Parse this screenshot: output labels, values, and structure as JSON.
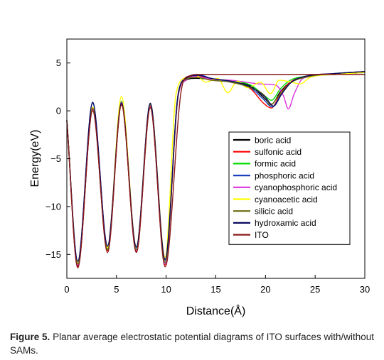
{
  "chart_data": {
    "type": "line",
    "title": "",
    "xlabel": "Distance(Å)",
    "ylabel": "Energy(eV)",
    "xlim": [
      0,
      30
    ],
    "ylim": [
      -17.5,
      7.5
    ],
    "x_ticks": [
      0,
      5,
      10,
      15,
      20,
      25,
      30
    ],
    "y_ticks": [
      -15,
      -10,
      -5,
      0,
      5
    ],
    "grid": false,
    "legend_position": "center-right",
    "minima_x": [
      1.1,
      4.1,
      7.0,
      9.9
    ],
    "maxima_x": [
      2.6,
      5.5,
      8.4
    ],
    "series": [
      {
        "name": "boric acid",
        "color": "#000000",
        "min_depth": [
          -16.2,
          -14.6,
          -14.6,
          -16.0
        ],
        "max_height": [
          0.2,
          0.8,
          0.5
        ],
        "final": 3.8,
        "tail": [
          [
            11.2,
            1.5
          ],
          [
            12.0,
            3.2
          ],
          [
            13.0,
            3.4
          ],
          [
            14.5,
            3.3
          ],
          [
            16.5,
            3.1
          ],
          [
            18.5,
            2.6
          ],
          [
            20.0,
            1.2
          ],
          [
            20.6,
            0.7
          ],
          [
            21.5,
            2.0
          ],
          [
            22.5,
            3.0
          ],
          [
            24.0,
            3.6
          ],
          [
            27.0,
            3.8
          ],
          [
            30.0,
            4.0
          ]
        ]
      },
      {
        "name": "sulfonic acid",
        "color": "#ff0000",
        "min_depth": [
          -16.3,
          -14.6,
          -14.7,
          -16.1
        ],
        "max_height": [
          0.1,
          0.7,
          0.4
        ],
        "final": 3.9,
        "tail": [
          [
            11.2,
            1.5
          ],
          [
            12.0,
            3.3
          ],
          [
            13.2,
            3.6
          ],
          [
            14.5,
            3.3
          ],
          [
            16.5,
            3.0
          ],
          [
            18.5,
            2.3
          ],
          [
            19.8,
            0.8
          ],
          [
            20.6,
            0.3
          ],
          [
            21.5,
            1.8
          ],
          [
            22.5,
            3.0
          ],
          [
            24.0,
            3.6
          ],
          [
            27.0,
            3.9
          ],
          [
            30.0,
            4.1
          ]
        ]
      },
      {
        "name": "formic acid",
        "color": "#00dd00",
        "min_depth": [
          -16.0,
          -14.4,
          -14.5,
          -15.9
        ],
        "max_height": [
          0.3,
          1.0,
          0.6
        ],
        "final": 3.8,
        "tail": [
          [
            11.2,
            1.6
          ],
          [
            12.0,
            3.3
          ],
          [
            13.0,
            3.5
          ],
          [
            14.5,
            3.3
          ],
          [
            16.5,
            3.1
          ],
          [
            18.5,
            2.7
          ],
          [
            20.0,
            1.5
          ],
          [
            20.6,
            1.1
          ],
          [
            21.5,
            2.3
          ],
          [
            22.5,
            3.2
          ],
          [
            24.0,
            3.6
          ],
          [
            27.0,
            3.8
          ],
          [
            30.0,
            4.0
          ]
        ]
      },
      {
        "name": "phosphoric acid",
        "color": "#1a3fbf",
        "min_depth": [
          -15.8,
          -14.2,
          -14.3,
          -15.6
        ],
        "max_height": [
          0.8,
          0.9,
          0.7
        ],
        "final": 3.9,
        "tail": [
          [
            11.2,
            1.7
          ],
          [
            12.0,
            3.4
          ],
          [
            13.2,
            3.8
          ],
          [
            14.5,
            3.4
          ],
          [
            16.5,
            3.0
          ],
          [
            18.5,
            2.4
          ],
          [
            19.8,
            1.2
          ],
          [
            20.7,
            0.4
          ],
          [
            21.5,
            1.6
          ],
          [
            22.5,
            2.9
          ],
          [
            24.0,
            3.5
          ],
          [
            27.0,
            3.9
          ],
          [
            30.0,
            4.1
          ]
        ]
      },
      {
        "name": "cyanophosphoric acid",
        "color": "#dd33dd",
        "min_depth": [
          -16.1,
          -14.5,
          -14.6,
          -16.0
        ],
        "max_height": [
          0.2,
          0.9,
          0.5
        ],
        "final": 3.8,
        "tail": [
          [
            11.2,
            1.5
          ],
          [
            12.0,
            3.2
          ],
          [
            13.0,
            3.6
          ],
          [
            14.5,
            3.3
          ],
          [
            16.5,
            3.2
          ],
          [
            18.0,
            3.0
          ],
          [
            19.5,
            2.8
          ],
          [
            21.0,
            2.7
          ],
          [
            21.8,
            1.6
          ],
          [
            22.3,
            0.2
          ],
          [
            22.9,
            1.8
          ],
          [
            23.8,
            3.4
          ],
          [
            27.0,
            3.8
          ],
          [
            30.0,
            4.0
          ]
        ]
      },
      {
        "name": "cyanoacetic acid",
        "color": "#ffff00",
        "min_depth": [
          -15.9,
          -14.3,
          -14.2,
          -15.3
        ],
        "max_height": [
          0.4,
          1.5,
          0.8
        ],
        "final": 3.8,
        "tail": [
          [
            11.0,
            1.8
          ],
          [
            12.0,
            3.5
          ],
          [
            13.0,
            3.7
          ],
          [
            14.0,
            3.0
          ],
          [
            15.2,
            3.4
          ],
          [
            16.2,
            1.9
          ],
          [
            17.2,
            3.1
          ],
          [
            18.2,
            2.4
          ],
          [
            19.5,
            3.0
          ],
          [
            20.5,
            1.8
          ],
          [
            21.4,
            3.2
          ],
          [
            22.6,
            3.0
          ],
          [
            23.5,
            2.8
          ],
          [
            24.5,
            3.5
          ],
          [
            27.0,
            3.8
          ],
          [
            30.0,
            4.0
          ]
        ]
      },
      {
        "name": "silicic acid",
        "color": "#6b6b10",
        "min_depth": [
          -16.0,
          -14.5,
          -14.5,
          -15.8
        ],
        "max_height": [
          0.3,
          0.8,
          0.6
        ],
        "final": 3.9,
        "tail": [
          [
            11.2,
            1.6
          ],
          [
            12.0,
            3.3
          ],
          [
            13.0,
            3.5
          ],
          [
            14.5,
            3.2
          ],
          [
            16.5,
            3.0
          ],
          [
            18.5,
            2.4
          ],
          [
            19.9,
            1.6
          ],
          [
            20.5,
            0.6
          ],
          [
            21.2,
            1.4
          ],
          [
            22.5,
            2.9
          ],
          [
            24.0,
            3.5
          ],
          [
            27.0,
            3.9
          ],
          [
            30.0,
            4.1
          ]
        ]
      },
      {
        "name": "hydroxamic acid",
        "color": "#0a0a60",
        "min_depth": [
          -15.7,
          -14.1,
          -14.2,
          -15.5
        ],
        "max_height": [
          0.9,
          0.8,
          0.8
        ],
        "final": 3.9,
        "tail": [
          [
            11.2,
            1.7
          ],
          [
            12.0,
            3.4
          ],
          [
            13.2,
            3.7
          ],
          [
            14.5,
            3.4
          ],
          [
            16.5,
            3.1
          ],
          [
            18.5,
            2.5
          ],
          [
            20.0,
            1.4
          ],
          [
            20.8,
            0.5
          ],
          [
            21.6,
            1.7
          ],
          [
            22.6,
            3.0
          ],
          [
            24.0,
            3.6
          ],
          [
            27.0,
            3.9
          ],
          [
            30.0,
            4.1
          ]
        ]
      },
      {
        "name": "ITO",
        "color": "#8b1a1a",
        "min_depth": [
          -16.4,
          -14.8,
          -14.8,
          -16.3
        ],
        "max_height": [
          0.0,
          0.6,
          0.3
        ],
        "final": 3.8,
        "tail": [
          [
            11.5,
            2.0
          ],
          [
            12.2,
            3.6
          ],
          [
            13.5,
            3.8
          ],
          [
            16.0,
            3.8
          ],
          [
            20.0,
            3.8
          ],
          [
            25.0,
            3.8
          ],
          [
            30.0,
            3.8
          ]
        ]
      }
    ]
  },
  "caption": {
    "label": "Figure 5.",
    "text": " Planar average electrostatic potential diagrams of ITO surfaces with/without SAMs."
  }
}
